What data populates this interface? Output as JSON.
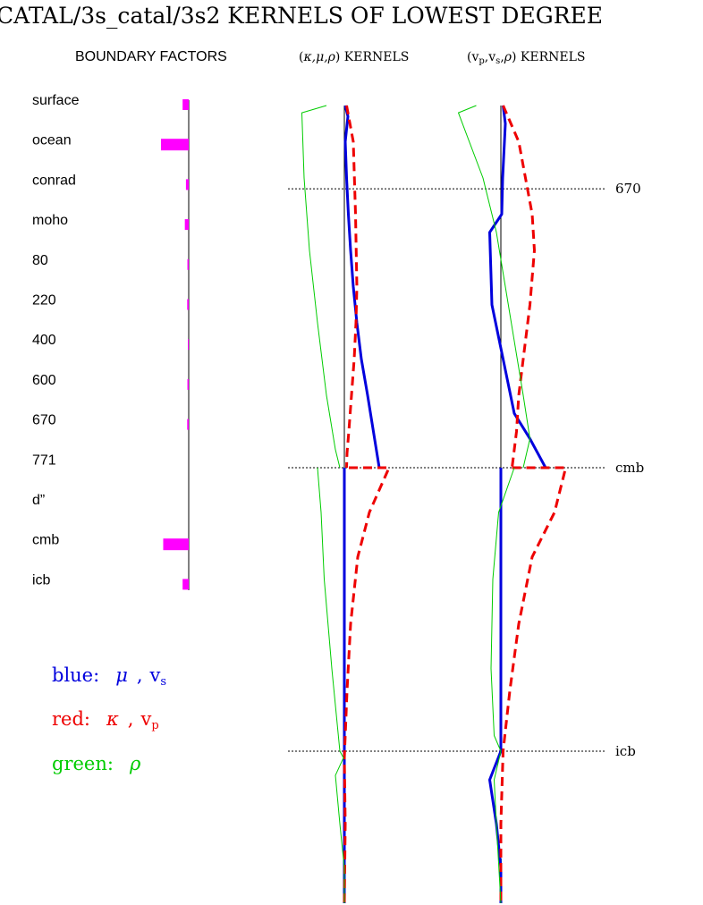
{
  "title": "CATAL/3s_catal/3s2 KERNELS OF LOWEST DEGREE",
  "headers": {
    "boundary": "BOUNDARY FACTORS",
    "kernels1_prefix": "(",
    "kernels1_syms": "κ,μ,ρ",
    "kernels1_suffix": ") KERNELS",
    "kernels2_prefix": "(",
    "kernels2_v1": "v",
    "kernels2_sub1": "p",
    "kernels2_sep1": ",",
    "kernels2_v2": "v",
    "kernels2_sub2": "s",
    "kernels2_sep2": ",",
    "kernels2_rho": "ρ",
    "kernels2_suffix": ") KERNELS"
  },
  "colors": {
    "blue": "#0000dd",
    "red": "#ee0000",
    "green": "#00cc00",
    "magenta": "#ff00ff",
    "teal": "#008888"
  },
  "legend": [
    {
      "prefix": "blue:",
      "sym": "μ",
      "sep": ",",
      "v": "v",
      "sub": "s",
      "color": "#0000dd"
    },
    {
      "prefix": "red:",
      "sym": "κ",
      "sep": ",",
      "v": "v",
      "sub": "p",
      "color": "#ee0000"
    },
    {
      "prefix": "green:",
      "sym": "ρ",
      "color": "#00cc00"
    }
  ],
  "chart_data": [
    {
      "type": "bar",
      "title": "BOUNDARY FACTORS",
      "categories": [
        "surface",
        "ocean",
        "conrad",
        "moho",
        "80",
        "220",
        "400",
        "600",
        "670",
        "771",
        "d”",
        "cmb",
        "icb"
      ],
      "values": [
        -0.055,
        -0.25,
        -0.025,
        -0.035,
        -0.012,
        -0.014,
        -0.008,
        -0.012,
        -0.014,
        0,
        0,
        -0.23,
        -0.055
      ],
      "xlim": [
        -0.3,
        0
      ],
      "note": "bars extend left of the zero line; relative magnitudes only (no axis printed)"
    },
    {
      "type": "line",
      "title": "(κ,μ,ρ) KERNELS",
      "depth_markers": [
        "670",
        "cmb",
        "icb"
      ],
      "xlim": [
        -1,
        1
      ],
      "series": [
        {
          "color": "blue",
          "x": [
            0.02,
            0.08,
            0.02,
            0.05,
            0.09,
            0.14,
            0.2,
            0.28,
            0.38,
            0.52,
            0.78
          ],
          "y": [
            0,
            0.03,
            0.1,
            0.2,
            0.3,
            0.4,
            0.5,
            0.6,
            0.7,
            0.8,
            1.0
          ],
          "core_x": [
            0.0,
            0.0,
            0.0,
            0.0
          ],
          "core_y": [
            1.0,
            1.5,
            2.2,
            2.96
          ]
        },
        {
          "color": "red",
          "dashed": true,
          "x": [
            0.05,
            0.2,
            0.25,
            0.28,
            0.26,
            0.22,
            0.16,
            0.1,
            0.06,
            0.05
          ],
          "y": [
            0,
            0.1,
            0.3,
            0.5,
            0.6,
            0.7,
            0.8,
            0.9,
            0.96,
            1.0
          ],
          "core_x": [
            0.1,
            1.0,
            0.56,
            0.3,
            0.14,
            0.06,
            0.0,
            0.02,
            0.0
          ],
          "core_y": [
            1.0,
            1.0,
            1.2,
            1.4,
            1.7,
            2.0,
            2.3,
            2.6,
            2.96
          ]
        },
        {
          "color": "green",
          "x": [
            -0.4,
            -0.95,
            -0.9,
            -0.78,
            -0.6,
            -0.4,
            -0.2,
            -0.1,
            -0.1
          ],
          "y": [
            0,
            0.02,
            0.2,
            0.4,
            0.6,
            0.8,
            0.95,
            1.0,
            1.0
          ],
          "core_x": [
            -0.6,
            -0.52,
            -0.45,
            -0.28,
            -0.1,
            -0.02,
            -0.2,
            -0.1,
            0.0,
            0.0
          ],
          "core_y": [
            1.0,
            1.2,
            1.5,
            1.9,
            2.27,
            2.3,
            2.38,
            2.6,
            2.8,
            2.96
          ]
        }
      ]
    },
    {
      "type": "line",
      "title": "(vp,vs,ρ) KERNELS",
      "depth_markers": [
        "670",
        "cmb",
        "icb"
      ],
      "xlim": [
        -1,
        1
      ],
      "series": [
        {
          "color": "blue",
          "x": [
            0.05,
            0.1,
            0.04,
            0.02,
            -0.25,
            -0.2,
            0.05,
            0.3,
            0.65,
            1.0
          ],
          "y": [
            0,
            0.05,
            0.2,
            0.3,
            0.35,
            0.55,
            0.7,
            0.85,
            0.92,
            1.0
          ],
          "core_x": [
            0.0,
            0.0,
            -0.25,
            -0.1,
            0.0,
            0.0
          ],
          "core_y": [
            1.0,
            2.27,
            2.4,
            2.6,
            2.8,
            2.96
          ]
        },
        {
          "color": "red",
          "dashed": true,
          "x": [
            0.05,
            0.4,
            0.7,
            0.75,
            0.65,
            0.5,
            0.4,
            0.35,
            0.25
          ],
          "y": [
            0,
            0.1,
            0.3,
            0.4,
            0.55,
            0.7,
            0.8,
            0.9,
            1.0
          ],
          "core_x": [
            0.25,
            1.45,
            1.2,
            0.7,
            0.4,
            0.2,
            0.05,
            0.0,
            0.0
          ],
          "core_y": [
            1.0,
            1.0,
            1.2,
            1.4,
            1.7,
            2.0,
            2.27,
            2.6,
            2.96
          ]
        },
        {
          "color": "green",
          "x": [
            -0.55,
            -0.95,
            -0.4,
            -0.1,
            0.1,
            0.3,
            0.5,
            0.65,
            0.5
          ],
          "y": [
            0,
            0.02,
            0.2,
            0.35,
            0.5,
            0.65,
            0.8,
            0.92,
            1.0
          ],
          "core_x": [
            0.3,
            -0.05,
            -0.18,
            -0.22,
            -0.15,
            0.0,
            -0.15,
            -0.1,
            0.0
          ],
          "core_y": [
            1.0,
            1.2,
            1.5,
            1.9,
            2.2,
            2.27,
            2.4,
            2.6,
            2.96
          ]
        }
      ]
    }
  ]
}
